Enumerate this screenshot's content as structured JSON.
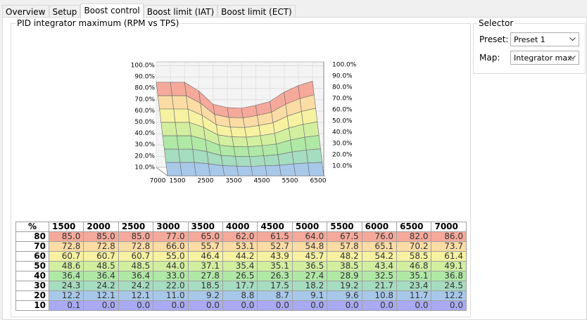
{
  "tabs": [
    "Overview",
    "Setup",
    "Boost control",
    "Boost limit (IAT)",
    "Boost limit (ECT)"
  ],
  "panel": {
    "title": "PID integrator maximum (RPM vs TPS)",
    "chart": {
      "z_labels": [
        "100.0%",
        "90.0%",
        "80.0%",
        "70.0%",
        "60.0%",
        "50.0%",
        "40.0%",
        "30.0%",
        "20.0%",
        "10.0%"
      ],
      "x_labels": [
        "7000",
        "1500",
        "2500",
        "3500",
        "4500",
        "5500",
        "6500"
      ]
    },
    "table": {
      "corner": "%",
      "columns": [
        "1500",
        "2000",
        "2500",
        "3000",
        "3500",
        "4000",
        "4500",
        "5000",
        "5500",
        "6000",
        "6500",
        "7000"
      ],
      "rows": [
        {
          "label": "80",
          "cells": [
            "85.0",
            "85.0",
            "85.0",
            "77.0",
            "65.0",
            "62.0",
            "61.5",
            "64.0",
            "67.5",
            "76.0",
            "82.0",
            "86.0"
          ]
        },
        {
          "label": "70",
          "cells": [
            "72.8",
            "72.8",
            "72.8",
            "66.0",
            "55.7",
            "53.1",
            "52.7",
            "54.8",
            "57.8",
            "65.1",
            "70.2",
            "73.7"
          ]
        },
        {
          "label": "60",
          "cells": [
            "60.7",
            "60.7",
            "60.7",
            "55.0",
            "46.4",
            "44.2",
            "43.9",
            "45.7",
            "48.2",
            "54.2",
            "58.5",
            "61.4"
          ]
        },
        {
          "label": "50",
          "cells": [
            "48.6",
            "48.5",
            "48.5",
            "44.0",
            "37.1",
            "35.4",
            "35.1",
            "36.5",
            "38.5",
            "43.4",
            "46.8",
            "49.1"
          ]
        },
        {
          "label": "40",
          "cells": [
            "36.4",
            "36.4",
            "36.4",
            "33.0",
            "27.8",
            "26.5",
            "26.3",
            "27.4",
            "28.9",
            "32.5",
            "35.1",
            "36.8"
          ]
        },
        {
          "label": "30",
          "cells": [
            "24.3",
            "24.2",
            "24.2",
            "22.0",
            "18.5",
            "17.7",
            "17.5",
            "18.2",
            "19.2",
            "21.7",
            "23.4",
            "24.5"
          ]
        },
        {
          "label": "20",
          "cells": [
            "12.2",
            "12.1",
            "12.1",
            "11.0",
            "9.2",
            "8.8",
            "8.7",
            "9.1",
            "9.6",
            "10.8",
            "11.7",
            "12.2"
          ]
        },
        {
          "label": "10",
          "cells": [
            "0.1",
            "0.0",
            "0.0",
            "0.0",
            "0.0",
            "0.0",
            "0.0",
            "0.0",
            "0.0",
            "0.0",
            "0.0",
            "0.0"
          ]
        }
      ]
    }
  },
  "selector": {
    "title": "Selector",
    "preset_label": "Preset:",
    "preset": "Preset 1",
    "map_label": "Map:",
    "map": "Integrator max."
  }
}
